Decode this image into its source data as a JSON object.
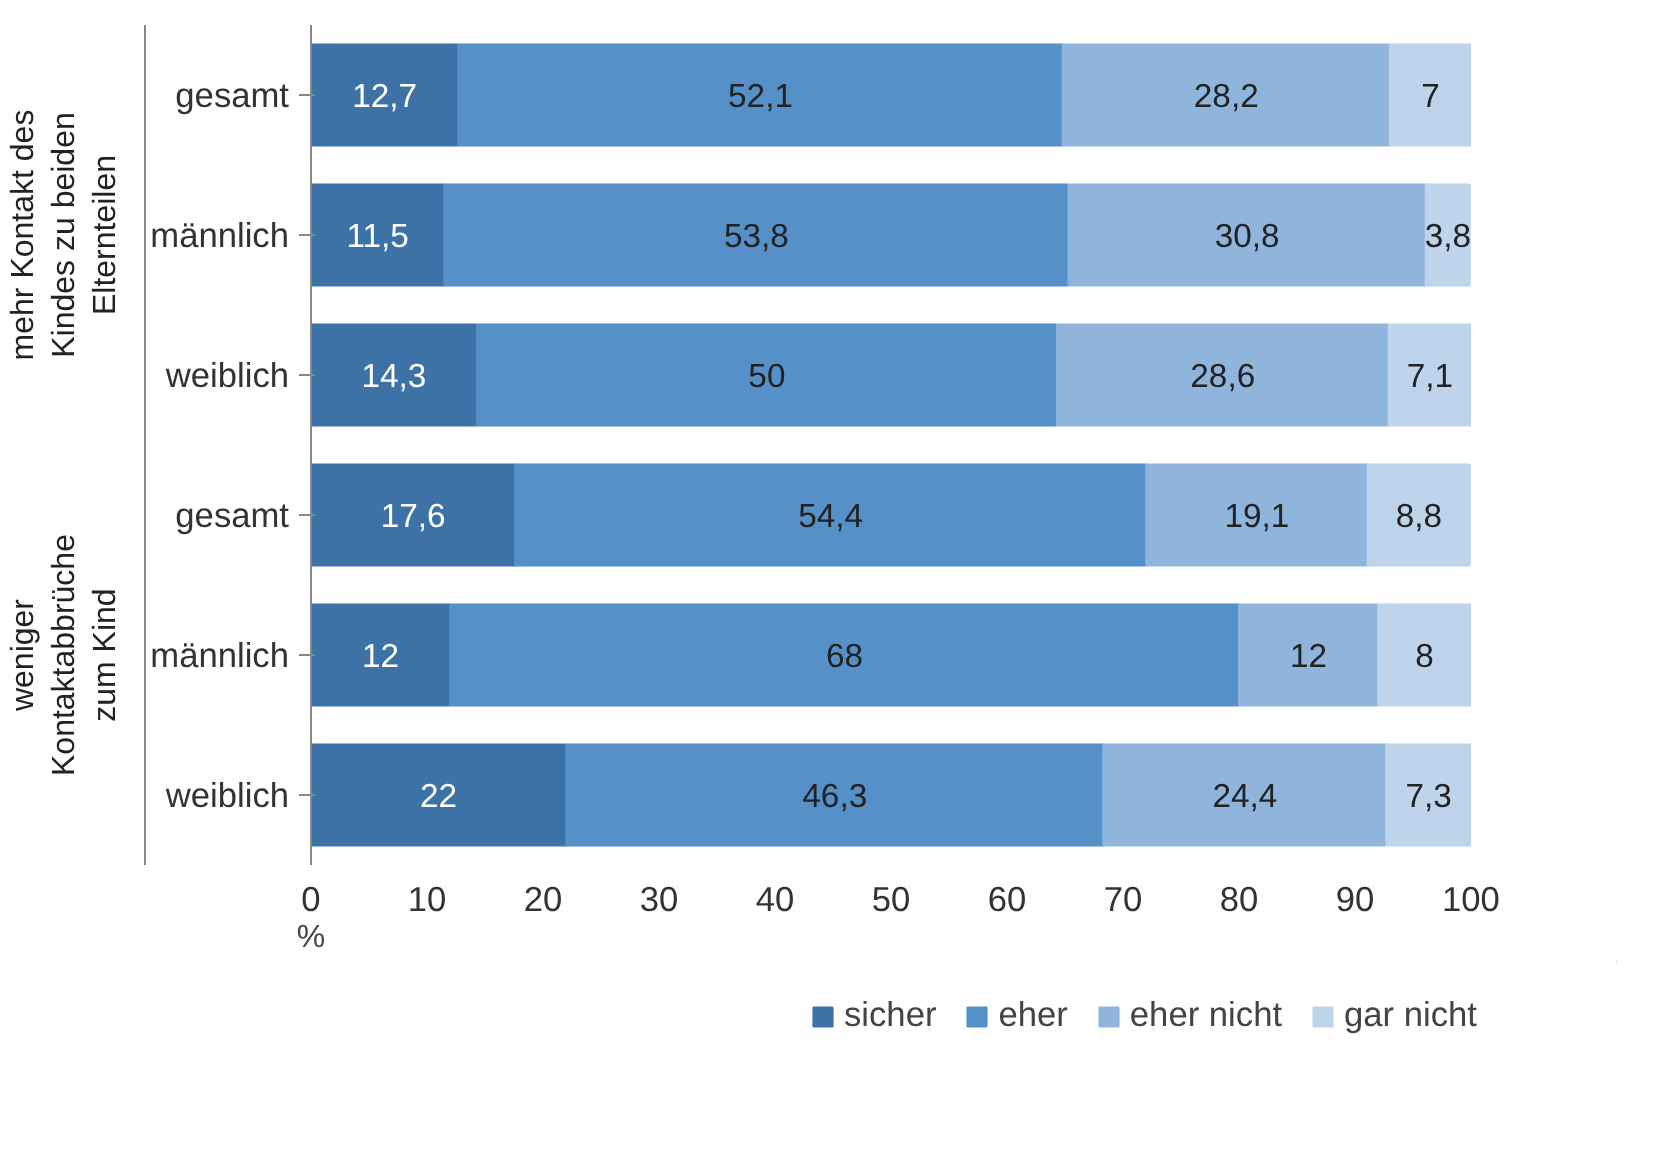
{
  "chart_data": {
    "type": "bar",
    "orientation": "horizontal",
    "stacked": true,
    "xlabel": "%",
    "categories": [
      "gesamt",
      "männlich",
      "weiblich",
      "gesamt",
      "männlich",
      "weiblich"
    ],
    "annotations": [
      "mehr Kontakt des Kindes zu beiden Elternteilen",
      "weniger Kontaktabbrüche zum Kind"
    ],
    "series": [
      {
        "name": "sicher",
        "color": "#3d72a6",
        "values": [
          12.7,
          11.5,
          14.3,
          17.6,
          12,
          22
        ],
        "value_labels": [
          "12,7",
          "11,5",
          "14,3",
          "17,6",
          "12",
          "22"
        ]
      },
      {
        "name": "eher",
        "color": "#5590c8",
        "values": [
          52.1,
          53.8,
          50,
          54.4,
          68,
          46.3
        ],
        "value_labels": [
          "52,1",
          "53,8",
          "50",
          "54,4",
          "68",
          "46,3"
        ]
      },
      {
        "name": "eher nicht",
        "color": "#8fb5dd",
        "values": [
          28.2,
          30.8,
          28.6,
          19.1,
          12,
          24.4
        ],
        "value_labels": [
          "28,2",
          "30,8",
          "28,6",
          "19,1",
          "12",
          "24,4"
        ]
      },
      {
        "name": "gar nicht",
        "color": "#bdd4eb",
        "values": [
          7,
          3.8,
          7.1,
          8.8,
          8,
          7.3
        ],
        "value_labels": [
          "7",
          "3,8",
          "7,1",
          "8,8",
          "8",
          "7,3"
        ]
      }
    ],
    "xlim": [
      0,
      100
    ],
    "xticks": [
      0,
      10,
      20,
      30,
      40,
      50,
      60,
      70,
      80,
      90,
      100
    ],
    "grid": false,
    "legend": "bottom"
  }
}
